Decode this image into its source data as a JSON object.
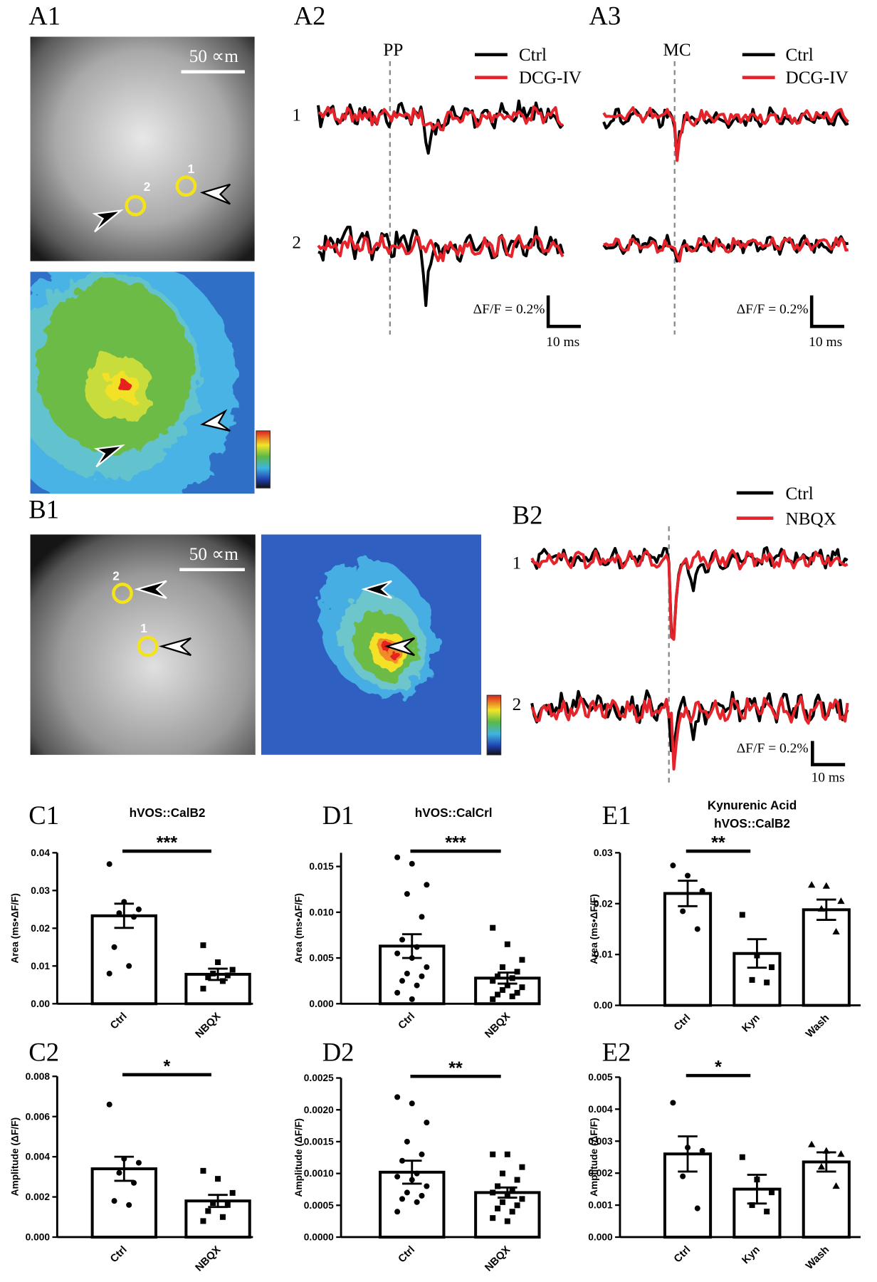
{
  "A1": {
    "label": "A1",
    "scale_bar": "50 ∝m",
    "rois": [
      "1",
      "2"
    ]
  },
  "A2": {
    "label": "A2",
    "site": "PP",
    "legend": [
      "Ctrl",
      "DCG-IV"
    ],
    "rows": [
      "1",
      "2"
    ],
    "scale_y": "ΔF/F = 0.2%",
    "scale_x": "10 ms"
  },
  "A3": {
    "label": "A3",
    "site": "MC",
    "legend": [
      "Ctrl",
      "DCG-IV"
    ],
    "rows": [
      "1",
      "2"
    ],
    "scale_y": "ΔF/F = 0.2%",
    "scale_x": "10 ms"
  },
  "B1": {
    "label": "B1",
    "scale_bar": "50 ∝m",
    "rois": [
      "2",
      "1"
    ]
  },
  "B2": {
    "label": "B2",
    "legend": [
      "Ctrl",
      "NBQX"
    ],
    "rows": [
      "1",
      "2"
    ],
    "scale_y": "ΔF/F = 0.2%",
    "scale_x": "10 ms"
  },
  "charts": [
    {
      "label": "C1",
      "title": [
        "hVOS::CalB2"
      ],
      "ylabel": "Area (ms•ΔF/F)",
      "categories": [
        "Ctrl",
        "NBQX"
      ],
      "values": [
        0.0233,
        0.0078
      ],
      "errors": [
        0.0032,
        0.0015
      ],
      "points": [
        [
          0.037,
          0.027,
          0.025,
          0.024,
          0.023,
          0.015,
          0.01,
          0.008
        ],
        [
          0.0155,
          0.011,
          0.009,
          0.008,
          0.0075,
          0.007,
          0.006,
          0.004
        ]
      ],
      "ylim": [
        0,
        0.04
      ],
      "yticks": [
        {
          "value": 0,
          "label": "0.00"
        },
        {
          "value": 0.01,
          "label": "0.01"
        },
        {
          "value": 0.02,
          "label": "0.02"
        },
        {
          "value": 0.03,
          "label": "0.03"
        },
        {
          "value": 0.04,
          "label": "0.04"
        }
      ],
      "significance": "***"
    },
    {
      "label": "C2",
      "title": [],
      "ylabel": "Amplitude (ΔF/F)",
      "categories": [
        "Ctrl",
        "NBQX"
      ],
      "values": [
        0.0034,
        0.0018
      ],
      "errors": [
        0.0006,
        0.0003
      ],
      "points": [
        [
          0.0066,
          0.0039,
          0.0037,
          0.0032,
          0.0027,
          0.0018,
          0.0016
        ],
        [
          0.0033,
          0.0029,
          0.0022,
          0.0017,
          0.0016,
          0.0013,
          0.001,
          0.0008
        ]
      ],
      "ylim": [
        0,
        0.008
      ],
      "yticks": [
        {
          "value": 0,
          "label": "0.000"
        },
        {
          "value": 0.002,
          "label": "0.002"
        },
        {
          "value": 0.004,
          "label": "0.004"
        },
        {
          "value": 0.006,
          "label": "0.006"
        },
        {
          "value": 0.008,
          "label": "0.008"
        }
      ],
      "significance": "*"
    },
    {
      "label": "D1",
      "title": [
        "hVOS::CalCrl"
      ],
      "ylabel": "Area (ms•ΔF/F)",
      "categories": [
        "Ctrl",
        "NBQX"
      ],
      "values": [
        0.0063,
        0.0028
      ],
      "errors": [
        0.0013,
        0.0006
      ],
      "points": [
        [
          0.016,
          0.0153,
          0.013,
          0.012,
          0.0095,
          0.007,
          0.0062,
          0.0055,
          0.005,
          0.004,
          0.0033,
          0.003,
          0.0025,
          0.002,
          0.0012,
          0.0005
        ],
        [
          0.0083,
          0.0065,
          0.0048,
          0.004,
          0.0035,
          0.003,
          0.0028,
          0.0025,
          0.002,
          0.0018,
          0.0015,
          0.0012,
          0.001,
          0.0008,
          0.0005
        ]
      ],
      "ylim": [
        0,
        0.0165
      ],
      "yticks": [
        {
          "value": 0,
          "label": "0.000"
        },
        {
          "value": 0.005,
          "label": "0.005"
        },
        {
          "value": 0.01,
          "label": "0.010"
        },
        {
          "value": 0.015,
          "label": "0.015"
        }
      ],
      "significance": "***"
    },
    {
      "label": "D2",
      "title": [],
      "ylabel": "Amplitude (ΔF/F)",
      "categories": [
        "Ctrl",
        "NBQX"
      ],
      "values": [
        0.00102,
        0.0007
      ],
      "errors": [
        0.00018,
        8e-05
      ],
      "points": [
        [
          0.0022,
          0.0021,
          0.0018,
          0.0015,
          0.0013,
          0.0012,
          0.001,
          0.00095,
          0.0009,
          0.0008,
          0.0007,
          0.00065,
          0.0006,
          0.00055,
          0.0004
        ],
        [
          0.0013,
          0.0013,
          0.0011,
          0.001,
          0.0009,
          0.0008,
          0.00075,
          0.0007,
          0.00065,
          0.0006,
          0.00055,
          0.0005,
          0.00045,
          0.0004,
          0.0003,
          0.00025
        ]
      ],
      "ylim": [
        0,
        0.0025
      ],
      "yticks": [
        {
          "value": 0,
          "label": "0.0000"
        },
        {
          "value": 0.0005,
          "label": "0.0005"
        },
        {
          "value": 0.001,
          "label": "0.0010"
        },
        {
          "value": 0.0015,
          "label": "0.0015"
        },
        {
          "value": 0.002,
          "label": "0.0020"
        },
        {
          "value": 0.0025,
          "label": "0.0025"
        }
      ],
      "significance": "**"
    },
    {
      "label": "E1",
      "title": [
        "Kynurenic Acid",
        "hVOS::CalB2"
      ],
      "ylabel": "Area (ms•ΔF/F)",
      "categories": [
        "Ctrl",
        "Kyn",
        "Wash"
      ],
      "values": [
        0.022,
        0.0102,
        0.0188
      ],
      "errors": [
        0.0025,
        0.0028,
        0.002
      ],
      "points": [
        [
          0.0275,
          0.0255,
          0.0225,
          0.0185,
          0.015
        ],
        [
          0.0178,
          0.0098,
          0.0075,
          0.005,
          0.0045
        ],
        [
          0.0237,
          0.0235,
          0.0205,
          0.019,
          0.0145
        ]
      ],
      "ylim": [
        0,
        0.03
      ],
      "yticks": [
        {
          "value": 0,
          "label": "0.00"
        },
        {
          "value": 0.01,
          "label": "0.01"
        },
        {
          "value": 0.02,
          "label": "0.02"
        },
        {
          "value": 0.03,
          "label": "0.03"
        }
      ],
      "significance": "**"
    },
    {
      "label": "E2",
      "title": [],
      "ylabel": "Amplitude (ΔF/F)",
      "categories": [
        "Ctrl",
        "Kyn",
        "Wash"
      ],
      "values": [
        0.0026,
        0.0015,
        0.00235
      ],
      "errors": [
        0.00055,
        0.00045,
        0.0003
      ],
      "points": [
        [
          0.0042,
          0.0028,
          0.0027,
          0.0019,
          0.0009
        ],
        [
          0.0025,
          0.0018,
          0.0014,
          0.001,
          0.0008
        ],
        [
          0.0029,
          0.0027,
          0.0026,
          0.0022,
          0.0016
        ]
      ],
      "ylim": [
        0,
        0.005
      ],
      "yticks": [
        {
          "value": 0,
          "label": "0.000"
        },
        {
          "value": 0.001,
          "label": "0.001"
        },
        {
          "value": 0.002,
          "label": "0.002"
        },
        {
          "value": 0.003,
          "label": "0.003"
        },
        {
          "value": 0.004,
          "label": "0.004"
        },
        {
          "value": 0.005,
          "label": "0.005"
        }
      ],
      "significance": "*"
    }
  ]
}
